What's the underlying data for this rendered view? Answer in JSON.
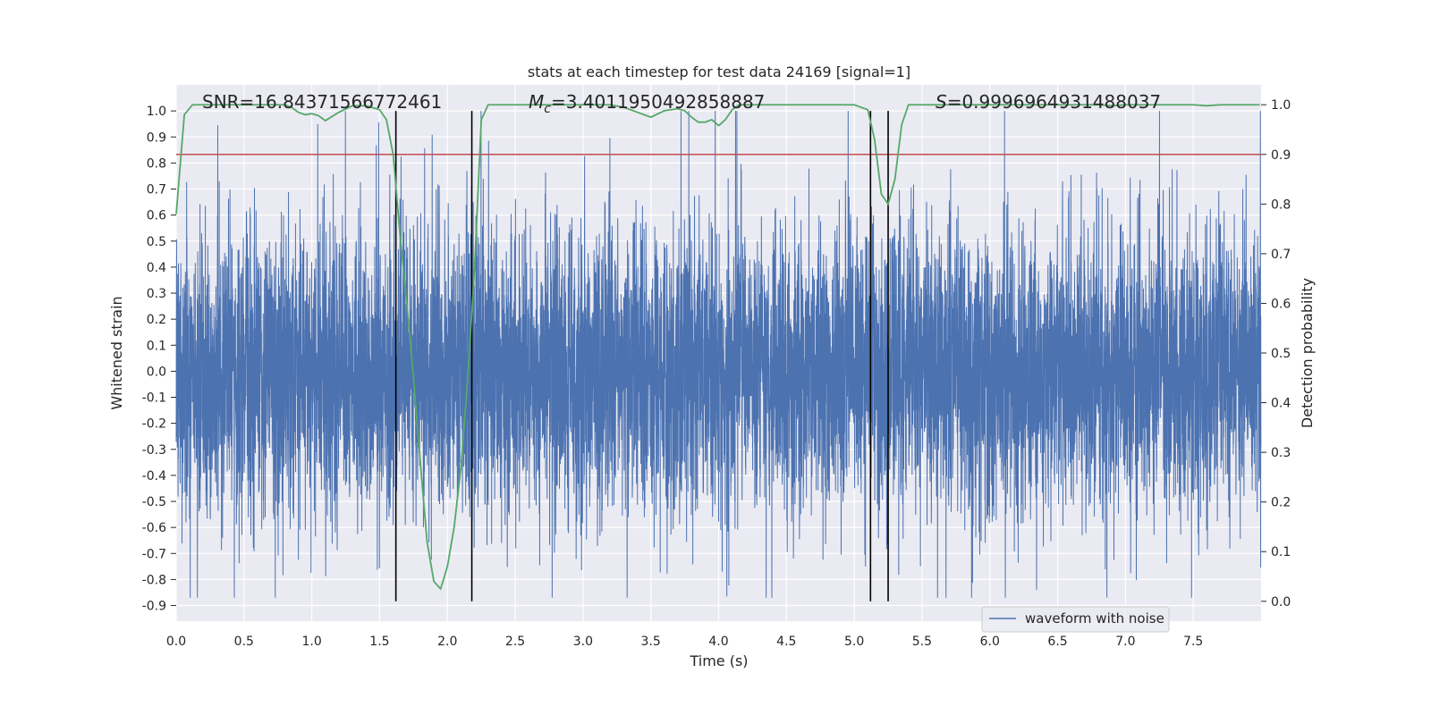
{
  "chart_data": {
    "type": "line",
    "title": "stats at each timestep for test data 24169 [signal=1]",
    "xlabel": "Time (s)",
    "ylabel": "Whitened strain",
    "y2label": "Detection probability",
    "xlim": [
      0.0,
      8.0
    ],
    "ylim": [
      -0.96,
      1.1
    ],
    "y2lim": [
      -0.04,
      1.04
    ],
    "grid": true,
    "legend_position": "lower-right",
    "x_ticks": [
      "0.0",
      "0.5",
      "1.0",
      "1.5",
      "2.0",
      "2.5",
      "3.0",
      "3.5",
      "4.0",
      "4.5",
      "5.0",
      "5.5",
      "6.0",
      "6.5",
      "7.0",
      "7.5"
    ],
    "y_ticks": [
      "1.0",
      "0.9",
      "0.8",
      "0.7",
      "0.6",
      "0.5",
      "0.4",
      "0.3",
      "0.2",
      "0.1",
      "0.0",
      "-0.1",
      "-0.2",
      "-0.3",
      "-0.4",
      "-0.5",
      "-0.6",
      "-0.7",
      "-0.8",
      "-0.9"
    ],
    "y2_ticks": [
      "1.0",
      "0.9",
      "0.8",
      "0.7",
      "0.6",
      "0.5",
      "0.4",
      "0.3",
      "0.2",
      "0.1",
      "0.0"
    ],
    "annotations": {
      "snr": "SNR=16.84371566772461",
      "mc_symbol": "M",
      "mc_sub": "c",
      "mc_value": "=3.4011950492858887",
      "s_symbol": "S",
      "s_value": "=0.9996964931488037"
    },
    "series": [
      {
        "name": "waveform with noise",
        "color": "#4c72b0",
        "kind": "noise",
        "n_samples": 8192,
        "typical_amplitude": 0.3,
        "peak_max": 1.0,
        "peak_min": -0.87
      },
      {
        "color": "#55a868",
        "axis": "right",
        "x": [
          0.0,
          0.06,
          0.12,
          0.2,
          0.3,
          0.4,
          0.5,
          0.6,
          0.7,
          0.8,
          0.85,
          0.9,
          0.95,
          1.0,
          1.05,
          1.1,
          1.2,
          1.3,
          1.4,
          1.5,
          1.55,
          1.6,
          1.65,
          1.7,
          1.75,
          1.8,
          1.85,
          1.9,
          1.95,
          2.0,
          2.05,
          2.1,
          2.15,
          2.2,
          2.25,
          2.3,
          2.4,
          2.5,
          2.6,
          2.7,
          2.8,
          2.9,
          3.0,
          3.1,
          3.2,
          3.3,
          3.4,
          3.5,
          3.6,
          3.7,
          3.75,
          3.8,
          3.85,
          3.9,
          3.95,
          4.0,
          4.05,
          4.1,
          4.15,
          4.2,
          4.3,
          4.4,
          4.5,
          4.6,
          4.7,
          4.8,
          4.9,
          5.0,
          5.1,
          5.15,
          5.2,
          5.25,
          5.3,
          5.35,
          5.4,
          5.5,
          5.6,
          5.7,
          5.8,
          5.9,
          6.0,
          6.1,
          6.2,
          6.3,
          6.4,
          6.5,
          6.6,
          6.7,
          6.8,
          6.9,
          7.0,
          7.1,
          7.2,
          7.3,
          7.4,
          7.5,
          7.6,
          7.7,
          7.8,
          7.9,
          7.99
        ],
        "values": [
          0.78,
          0.98,
          1.0,
          1.0,
          1.0,
          1.0,
          1.0,
          1.0,
          1.0,
          1.0,
          0.995,
          0.985,
          0.98,
          0.982,
          0.978,
          0.968,
          0.985,
          0.998,
          0.998,
          0.99,
          0.97,
          0.9,
          0.74,
          0.6,
          0.45,
          0.28,
          0.12,
          0.04,
          0.025,
          0.07,
          0.15,
          0.27,
          0.45,
          0.67,
          0.97,
          1.0,
          1.0,
          1.0,
          1.0,
          1.0,
          1.0,
          1.0,
          1.0,
          1.0,
          1.0,
          0.995,
          0.985,
          0.975,
          0.988,
          0.992,
          0.988,
          0.975,
          0.965,
          0.965,
          0.97,
          0.958,
          0.97,
          0.99,
          1.0,
          1.0,
          1.0,
          1.0,
          1.0,
          1.0,
          1.0,
          1.0,
          1.0,
          1.0,
          0.99,
          0.93,
          0.82,
          0.8,
          0.85,
          0.96,
          1.0,
          1.0,
          1.0,
          1.0,
          1.0,
          1.0,
          1.0,
          1.0,
          1.0,
          1.0,
          1.0,
          1.0,
          1.0,
          1.0,
          1.0,
          0.998,
          1.0,
          1.0,
          1.0,
          1.0,
          1.0,
          1.0,
          0.998,
          1.0,
          1.0,
          1.0,
          1.0
        ]
      }
    ],
    "threshold": {
      "axis": "right",
      "value": 0.9,
      "color": "#c44e52"
    },
    "event_lines": {
      "x": [
        1.62,
        2.18,
        5.12,
        5.25
      ],
      "y_top": 1.0,
      "color": "#000000"
    }
  }
}
